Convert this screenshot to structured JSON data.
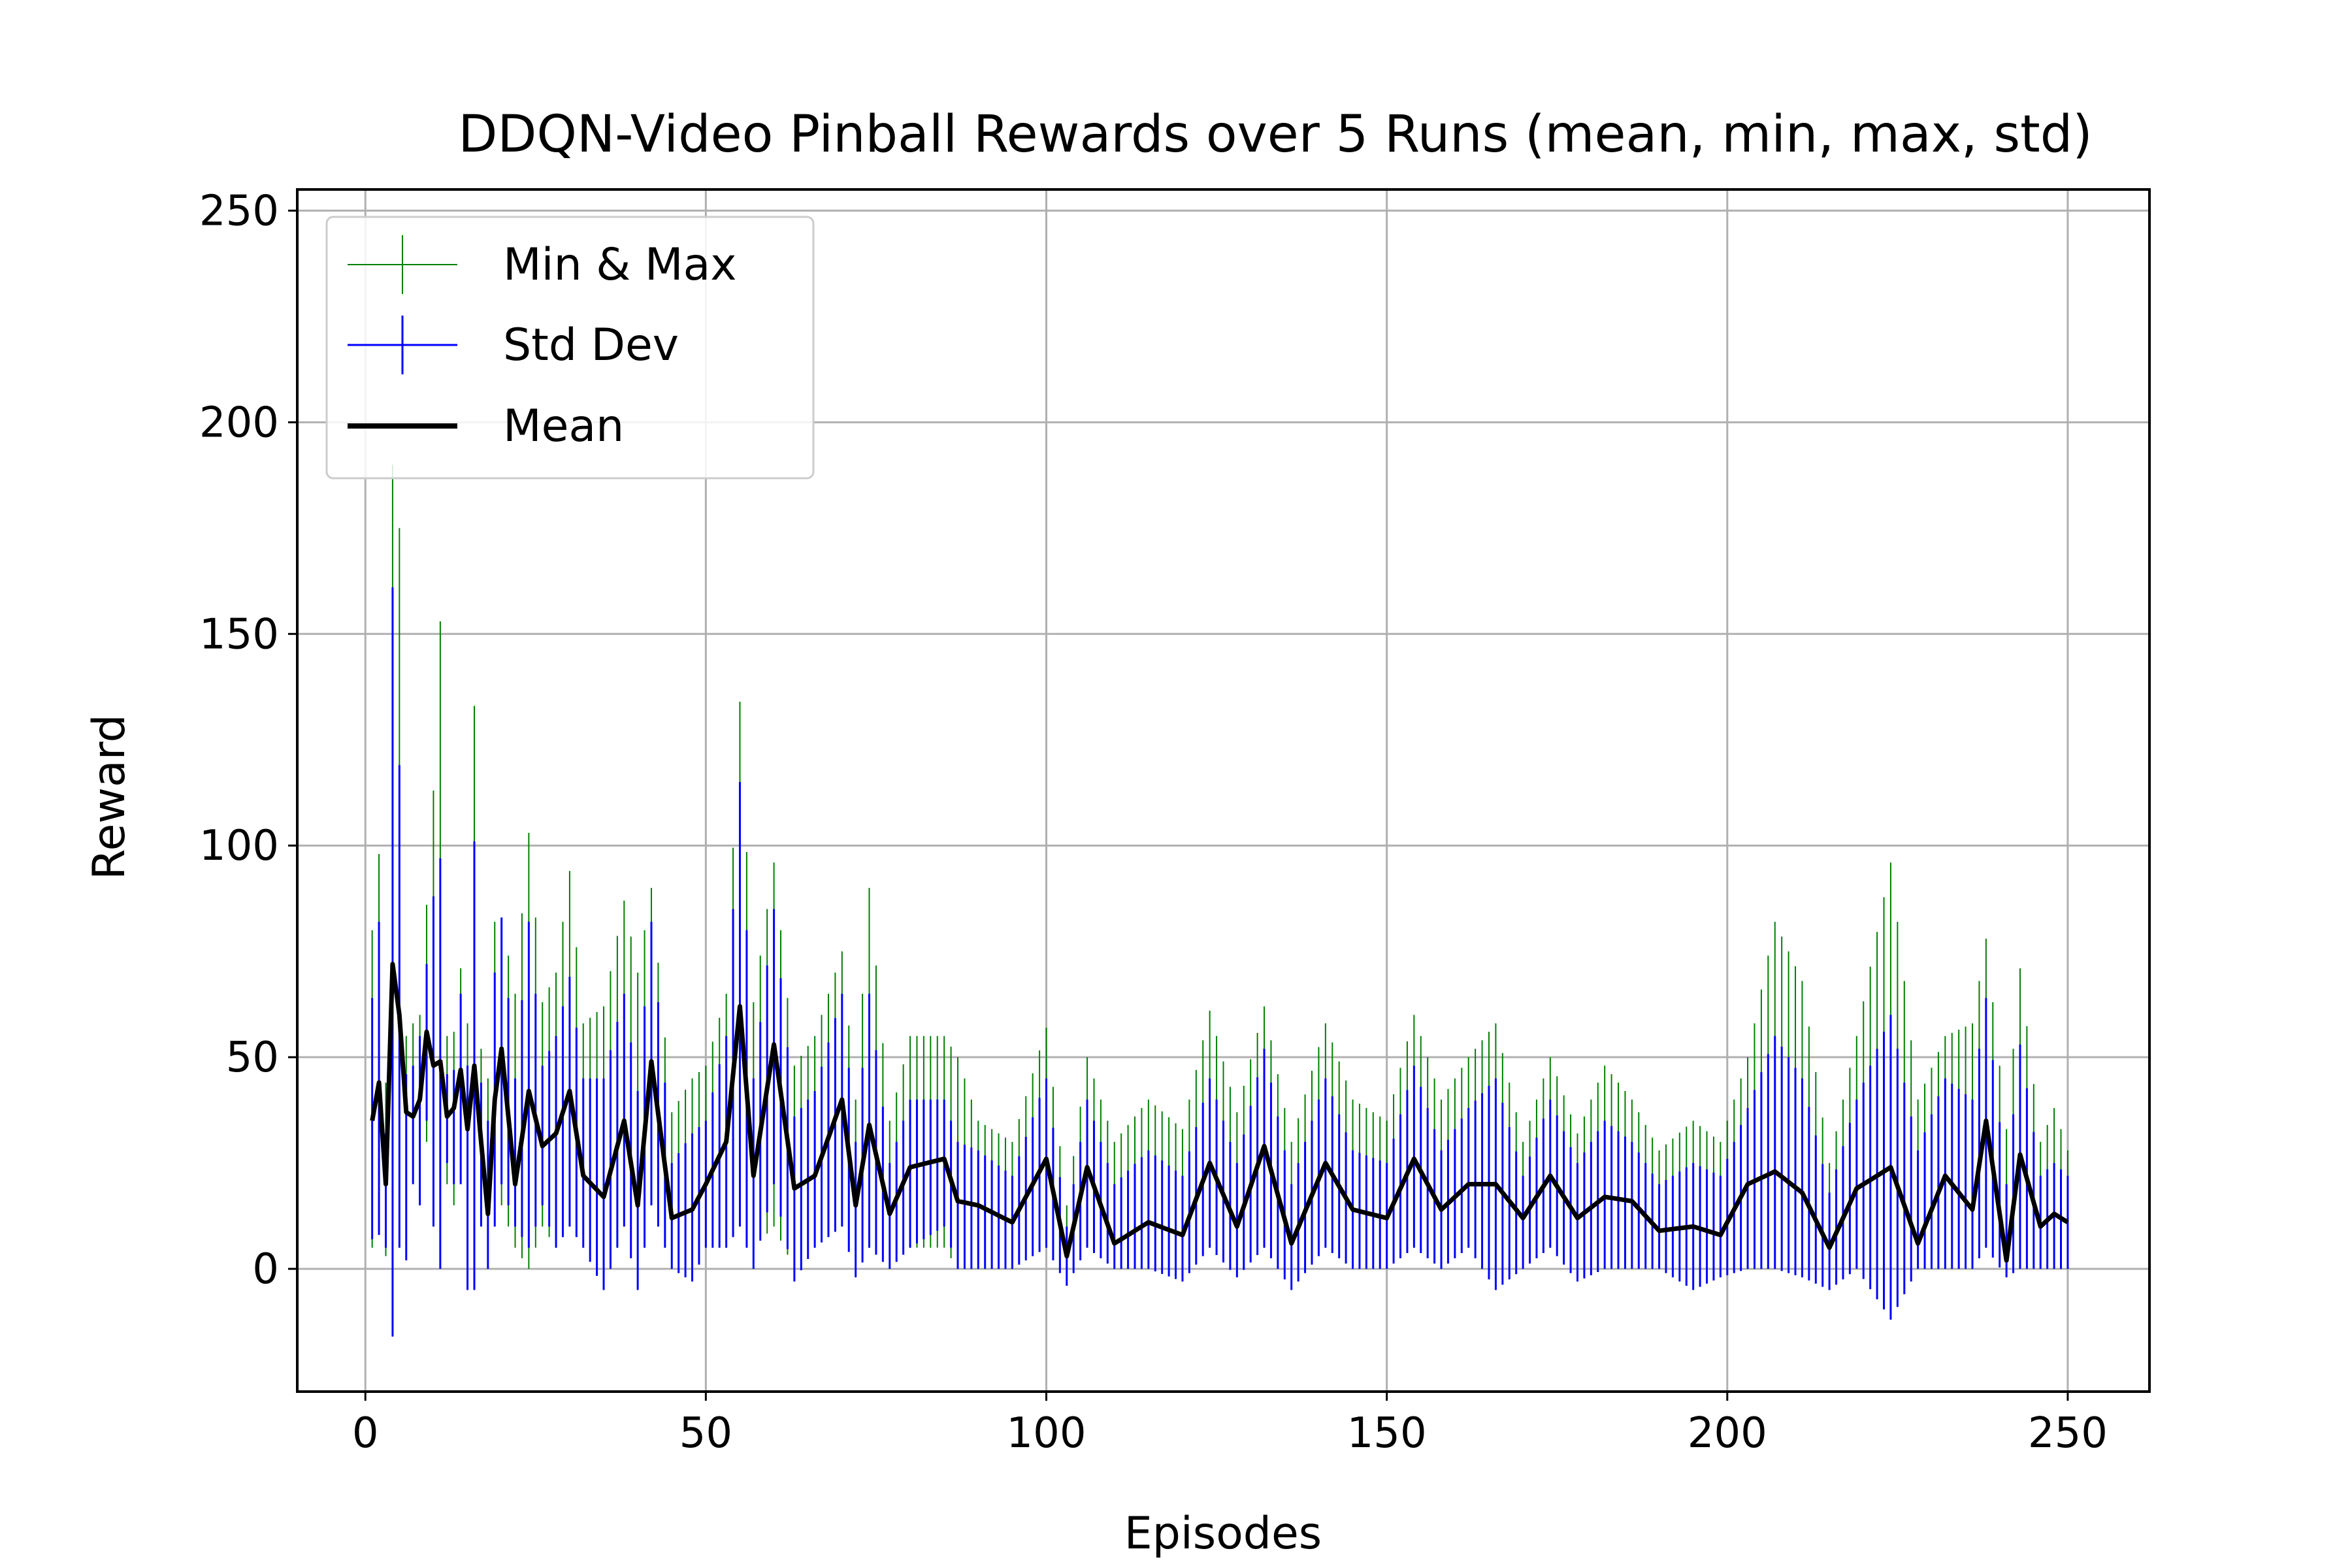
{
  "chart_data": {
    "type": "line",
    "title": "DDQN-Video Pinball Rewards over 5 Runs (mean, min, max, std)",
    "xlabel": "Episodes",
    "ylabel": "Reward",
    "xlim": [
      -10,
      262
    ],
    "ylim": [
      -29,
      255
    ],
    "xticks": [
      "0",
      "50",
      "100",
      "150",
      "200",
      "250"
    ],
    "yticks": [
      "0",
      "50",
      "100",
      "150",
      "200",
      "250"
    ],
    "grid": true,
    "legend_placement": "upper-left",
    "legend": {
      "minmax": "Min & Max",
      "std": "Std Dev",
      "mean": "Mean"
    },
    "colors": {
      "minmax": "#008000",
      "std": "#0000ff",
      "mean": "#000000",
      "grid": "#b0b0b0"
    },
    "series_keypoints": {
      "x": [
        1,
        2,
        3,
        4,
        5,
        6,
        7,
        8,
        9,
        10,
        11,
        12,
        13,
        14,
        15,
        16,
        17,
        18,
        19,
        20,
        22,
        24,
        26,
        28,
        30,
        32,
        35,
        38,
        40,
        42,
        45,
        48,
        50,
        53,
        55,
        57,
        60,
        63,
        66,
        70,
        72,
        74,
        77,
        80,
        85,
        87,
        90,
        95,
        100,
        103,
        106,
        110,
        115,
        120,
        124,
        128,
        132,
        136,
        141,
        145,
        150,
        154,
        158,
        162,
        166,
        170,
        174,
        178,
        182,
        186,
        190,
        195,
        199,
        203,
        207,
        211,
        215,
        219,
        224,
        228,
        232,
        236,
        238,
        241,
        243,
        246,
        248,
        250
      ],
      "mean": [
        35,
        44,
        20,
        72,
        60,
        37,
        36,
        40,
        56,
        48,
        49,
        36,
        38,
        47,
        33,
        48,
        30,
        13,
        40,
        52,
        20,
        42,
        29,
        32,
        42,
        22,
        17,
        35,
        15,
        49,
        12,
        14,
        20,
        30,
        62,
        22,
        53,
        19,
        22,
        40,
        15,
        34,
        13,
        24,
        26,
        16,
        15,
        11,
        26,
        3,
        24,
        6,
        11,
        8,
        25,
        10,
        29,
        6,
        25,
        14,
        12,
        26,
        14,
        20,
        20,
        12,
        22,
        12,
        17,
        16,
        9,
        10,
        8,
        20,
        23,
        18,
        5,
        19,
        24,
        6,
        22,
        14,
        35,
        2,
        27,
        10,
        13,
        11
      ],
      "max": [
        80,
        98,
        44,
        190,
        175,
        55,
        58,
        60,
        86,
        113,
        153,
        55,
        56,
        71,
        58,
        133,
        52,
        45,
        82,
        83,
        65,
        103,
        63,
        70,
        94,
        58,
        62,
        87,
        70,
        90,
        37,
        45,
        48,
        65,
        134,
        63,
        96,
        48,
        55,
        75,
        40,
        90,
        35,
        55,
        55,
        50,
        35,
        30,
        57,
        15,
        50,
        30,
        40,
        33,
        61,
        37,
        62,
        30,
        58,
        40,
        35,
        60,
        40,
        50,
        58,
        30,
        50,
        32,
        48,
        40,
        28,
        35,
        30,
        50,
        82,
        68,
        25,
        55,
        96,
        40,
        55,
        58,
        78,
        33,
        71,
        30,
        38,
        28
      ],
      "min": [
        5,
        10,
        3,
        2,
        40,
        10,
        20,
        15,
        30,
        10,
        5,
        20,
        15,
        20,
        5,
        10,
        10,
        0,
        10,
        15,
        5,
        0,
        10,
        5,
        10,
        5,
        0,
        10,
        0,
        15,
        0,
        0,
        5,
        5,
        20,
        5,
        10,
        0,
        5,
        10,
        0,
        5,
        0,
        5,
        5,
        0,
        0,
        0,
        5,
        0,
        5,
        0,
        0,
        0,
        5,
        0,
        5,
        0,
        5,
        0,
        0,
        5,
        0,
        5,
        0,
        0,
        5,
        0,
        0,
        0,
        0,
        0,
        0,
        0,
        0,
        0,
        0,
        0,
        0,
        0,
        0,
        0,
        5,
        0,
        5,
        0,
        0,
        0
      ],
      "std_hi": [
        64,
        82,
        32,
        161,
        119,
        46,
        48,
        55,
        72,
        88,
        97,
        46,
        47,
        65,
        48,
        101,
        44,
        35,
        70,
        83,
        45,
        82,
        48,
        55,
        69,
        45,
        45,
        65,
        42,
        82,
        25,
        32,
        35,
        55,
        115,
        45,
        85,
        36,
        42,
        65,
        30,
        65,
        25,
        40,
        40,
        30,
        28,
        22,
        45,
        10,
        40,
        20,
        28,
        22,
        45,
        25,
        52,
        20,
        45,
        28,
        25,
        48,
        28,
        38,
        45,
        22,
        40,
        25,
        35,
        30,
        20,
        25,
        22,
        38,
        55,
        45,
        18,
        40,
        60,
        28,
        45,
        40,
        64,
        20,
        53,
        22,
        25,
        22
      ],
      "std_lo": [
        7,
        8,
        5,
        -16,
        5,
        2,
        20,
        15,
        35,
        10,
        0,
        25,
        20,
        20,
        -5,
        -5,
        10,
        0,
        10,
        20,
        10,
        5,
        15,
        5,
        10,
        5,
        -5,
        10,
        -5,
        15,
        0,
        -3,
        5,
        5,
        10,
        0,
        20,
        -3,
        5,
        10,
        -2,
        5,
        0,
        5,
        10,
        0,
        0,
        0,
        5,
        -4,
        5,
        0,
        0,
        -3,
        5,
        -2,
        5,
        -5,
        5,
        0,
        0,
        5,
        0,
        5,
        -5,
        0,
        5,
        -3,
        0,
        0,
        0,
        -5,
        -2,
        0,
        0,
        -2,
        -5,
        0,
        -12,
        0,
        0,
        0,
        5,
        -2,
        0,
        0,
        0,
        0
      ]
    }
  }
}
